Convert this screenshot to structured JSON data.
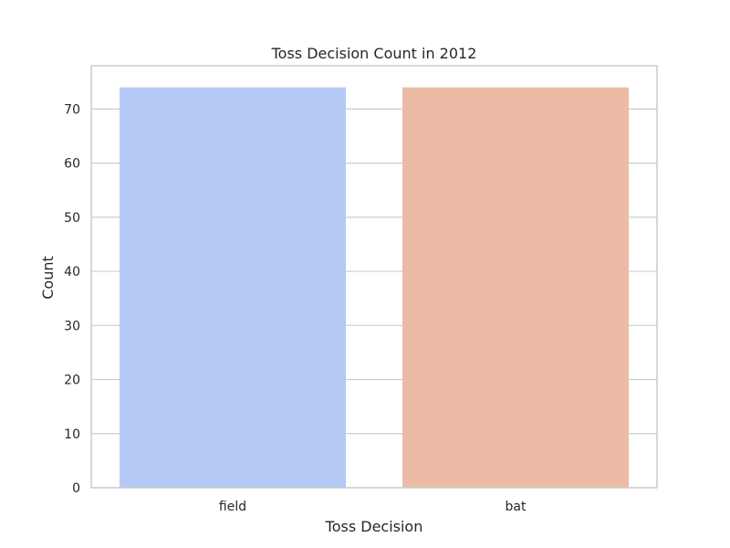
{
  "chart_data": {
    "type": "bar",
    "title": "Toss Decision Count in 2012",
    "xlabel": "Toss Decision",
    "ylabel": "Count",
    "categories": [
      "field",
      "bat"
    ],
    "values": [
      74,
      74
    ],
    "colors": [
      "#b5c9f5",
      "#ecbba5"
    ],
    "ylim": [
      0,
      78
    ],
    "yticks": [
      0,
      10,
      20,
      30,
      40,
      50,
      60,
      70
    ],
    "grid": true,
    "grid_color": "#cccccc",
    "frame_color": "#cccccc"
  }
}
